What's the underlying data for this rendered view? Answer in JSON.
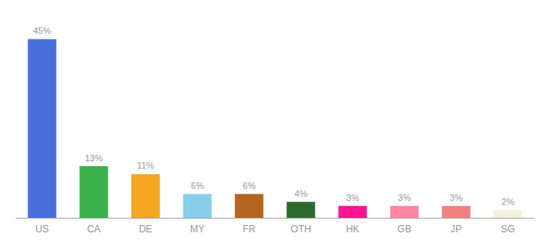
{
  "chart_data": {
    "type": "bar",
    "categories": [
      "US",
      "CA",
      "DE",
      "MY",
      "FR",
      "OTH",
      "HK",
      "GB",
      "JP",
      "SG"
    ],
    "values": [
      45,
      13,
      11,
      6,
      6,
      4,
      3,
      3,
      3,
      2
    ],
    "value_labels": [
      "45%",
      "13%",
      "11%",
      "6%",
      "6%",
      "4%",
      "3%",
      "3%",
      "3%",
      "2%"
    ],
    "colors": [
      "#4a6fdb",
      "#3cb34a",
      "#f5a623",
      "#87ceeb",
      "#b5651d",
      "#2d6a2d",
      "#ff1493",
      "#ff85a1",
      "#f08080",
      "#f5f0dc"
    ],
    "ylim": [
      0,
      50
    ],
    "grid": false,
    "data_labels": true,
    "tick_labels": "x"
  }
}
